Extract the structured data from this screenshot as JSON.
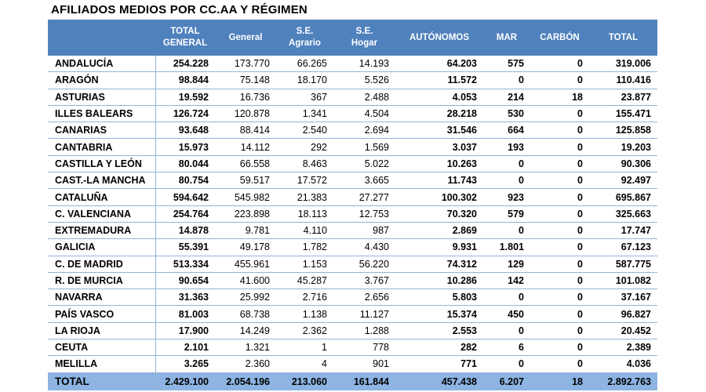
{
  "title": "AFILIADOS MEDIOS POR CC.AA Y RÉGIMEN",
  "columns": [
    {
      "line1": "",
      "line2": ""
    },
    {
      "line1": "TOTAL",
      "line2": "GENERAL"
    },
    {
      "line1": "General",
      "line2": ""
    },
    {
      "line1": "S.E.",
      "line2": "Agrario"
    },
    {
      "line1": "S.E.",
      "line2": "Hogar"
    },
    {
      "line1": "AUTÓNOMOS",
      "line2": ""
    },
    {
      "line1": "MAR",
      "line2": ""
    },
    {
      "line1": "CARBÓN",
      "line2": ""
    },
    {
      "line1": "TOTAL",
      "line2": ""
    }
  ],
  "rows": [
    [
      "ANDALUCÍA",
      "254.228",
      "173.770",
      "66.265",
      "14.193",
      "64.203",
      "575",
      "0",
      "319.006"
    ],
    [
      "ARAGÓN",
      "98.844",
      "75.148",
      "18.170",
      "5.526",
      "11.572",
      "0",
      "0",
      "110.416"
    ],
    [
      "ASTURIAS",
      "19.592",
      "16.736",
      "367",
      "2.488",
      "4.053",
      "214",
      "18",
      "23.877"
    ],
    [
      "ILLES BALEARS",
      "126.724",
      "120.878",
      "1.341",
      "4.504",
      "28.218",
      "530",
      "0",
      "155.471"
    ],
    [
      "CANARIAS",
      "93.648",
      "88.414",
      "2.540",
      "2.694",
      "31.546",
      "664",
      "0",
      "125.858"
    ],
    [
      "CANTABRIA",
      "15.973",
      "14.112",
      "292",
      "1.569",
      "3.037",
      "193",
      "0",
      "19.203"
    ],
    [
      "CASTILLA Y LEÓN",
      "80.044",
      "66.558",
      "8.463",
      "5.022",
      "10.263",
      "0",
      "0",
      "90.306"
    ],
    [
      "CAST.-LA MANCHA",
      "80.754",
      "59.517",
      "17.572",
      "3.665",
      "11.743",
      "0",
      "0",
      "92.497"
    ],
    [
      "CATALUÑA",
      "594.642",
      "545.982",
      "21.383",
      "27.277",
      "100.302",
      "923",
      "0",
      "695.867"
    ],
    [
      "C. VALENCIANA",
      "254.764",
      "223.898",
      "18.113",
      "12.753",
      "70.320",
      "579",
      "0",
      "325.663"
    ],
    [
      "EXTREMADURA",
      "14.878",
      "9.781",
      "4.110",
      "987",
      "2.869",
      "0",
      "0",
      "17.747"
    ],
    [
      "GALICIA",
      "55.391",
      "49.178",
      "1.782",
      "4.430",
      "9.931",
      "1.801",
      "0",
      "67.123"
    ],
    [
      "C. DE MADRID",
      "513.334",
      "455.961",
      "1.153",
      "56.220",
      "74.312",
      "129",
      "0",
      "587.775"
    ],
    [
      "R. DE MURCIA",
      "90.654",
      "41.600",
      "45.287",
      "3.767",
      "10.286",
      "142",
      "0",
      "101.082"
    ],
    [
      "NAVARRA",
      "31.363",
      "25.992",
      "2.716",
      "2.656",
      "5.803",
      "0",
      "0",
      "37.167"
    ],
    [
      "PAÍS VASCO",
      "81.003",
      "68.738",
      "1.138",
      "11.127",
      "15.374",
      "450",
      "0",
      "96.827"
    ],
    [
      "LA RIOJA",
      "17.900",
      "14.249",
      "2.362",
      "1.288",
      "2.553",
      "0",
      "0",
      "20.452"
    ],
    [
      "CEUTA",
      "2.101",
      "1.321",
      "1",
      "778",
      "282",
      "6",
      "0",
      "2.389"
    ],
    [
      "MELILLA",
      "3.265",
      "2.360",
      "4",
      "901",
      "771",
      "0",
      "0",
      "4.036"
    ]
  ],
  "total_row": [
    "TOTAL",
    "2.429.100",
    "2.054.196",
    "213.060",
    "161.844",
    "457.438",
    "6.207",
    "18",
    "2.892.763"
  ],
  "colors": {
    "header": "#4f81bd",
    "total_row": "#8db4e2",
    "grid": "#95b3d7"
  }
}
